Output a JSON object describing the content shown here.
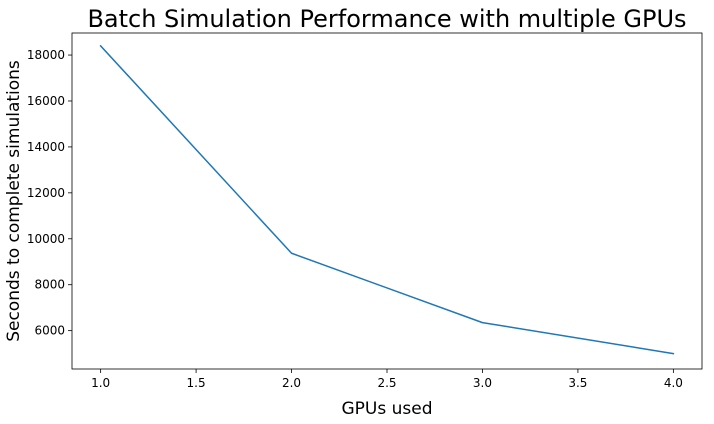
{
  "chart_data": {
    "type": "line",
    "title": "Batch Simulation Performance with multiple GPUs",
    "xlabel": "GPUs used",
    "ylabel": "Seconds to complete simulations",
    "x": [
      1.0,
      2.0,
      3.0,
      4.0
    ],
    "series": [
      {
        "values": [
          18400,
          9370,
          6350,
          5000
        ],
        "color": "#1f77b4"
      }
    ],
    "xlim": [
      0.85,
      4.15
    ],
    "ylim": [
      4330,
      18960
    ],
    "xticks": [
      1.0,
      1.5,
      2.0,
      2.5,
      3.0,
      3.5,
      4.0
    ],
    "xtick_labels": [
      "1.0",
      "1.5",
      "2.0",
      "2.5",
      "3.0",
      "3.5",
      "4.0"
    ],
    "yticks": [
      6000,
      8000,
      10000,
      12000,
      14000,
      16000,
      18000
    ],
    "ytick_labels": [
      "6000",
      "8000",
      "10000",
      "12000",
      "14000",
      "16000",
      "18000"
    ],
    "grid": false,
    "legend": "none"
  }
}
